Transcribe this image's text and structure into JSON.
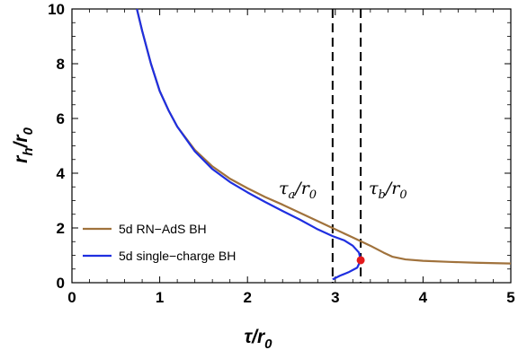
{
  "chart_data": {
    "type": "line",
    "xlabel": "τ/r",
    "xlabel_sub": "0",
    "ylabel": "r",
    "ylabel_sub1": "h",
    "ylabel_mid": "/r",
    "ylabel_sub2": "0",
    "xlim": [
      0,
      5
    ],
    "ylim": [
      0,
      10
    ],
    "xticks": [
      "0",
      "1",
      "2",
      "3",
      "4",
      "5"
    ],
    "yticks": [
      "0",
      "2",
      "4",
      "6",
      "8",
      "10"
    ],
    "grid": false,
    "legend_position": "bottom-left",
    "annotations": [
      {
        "id": "tau-a",
        "main": "τ",
        "sub1": "a",
        "mid": "/",
        "main2": "r",
        "sub2": "0",
        "x": 2.97
      },
      {
        "id": "tau-b",
        "main": "τ",
        "sub1": "b",
        "mid": "/",
        "main2": "r",
        "sub2": "0",
        "x": 3.29
      }
    ],
    "vlines": [
      {
        "x": 2.97,
        "style": "dashed",
        "color": "#000000"
      },
      {
        "x": 3.29,
        "style": "dashed",
        "color": "#000000"
      }
    ],
    "marker": {
      "x": 3.29,
      "y": 0.82,
      "color": "#e41a1c"
    },
    "series": [
      {
        "name": "5d RN−AdS BH",
        "color": "#a0723c",
        "points": [
          [
            0.74,
            10.0
          ],
          [
            0.8,
            9.2
          ],
          [
            0.9,
            8.0
          ],
          [
            1.0,
            7.0
          ],
          [
            1.1,
            6.3
          ],
          [
            1.2,
            5.7
          ],
          [
            1.4,
            4.85
          ],
          [
            1.6,
            4.25
          ],
          [
            1.8,
            3.8
          ],
          [
            2.0,
            3.45
          ],
          [
            2.2,
            3.13
          ],
          [
            2.4,
            2.85
          ],
          [
            2.6,
            2.55
          ],
          [
            2.8,
            2.25
          ],
          [
            3.0,
            1.95
          ],
          [
            3.2,
            1.65
          ],
          [
            3.4,
            1.35
          ],
          [
            3.55,
            1.1
          ],
          [
            3.65,
            0.95
          ],
          [
            3.8,
            0.85
          ],
          [
            4.0,
            0.8
          ],
          [
            4.3,
            0.76
          ],
          [
            4.6,
            0.73
          ],
          [
            5.0,
            0.7
          ]
        ]
      },
      {
        "name": "5d single−charge BH",
        "color": "#1f2fe0",
        "points": [
          [
            0.74,
            10.0
          ],
          [
            0.8,
            9.2
          ],
          [
            0.9,
            8.0
          ],
          [
            1.0,
            7.0
          ],
          [
            1.1,
            6.3
          ],
          [
            1.2,
            5.7
          ],
          [
            1.4,
            4.8
          ],
          [
            1.6,
            4.15
          ],
          [
            1.8,
            3.68
          ],
          [
            2.0,
            3.3
          ],
          [
            2.2,
            2.95
          ],
          [
            2.4,
            2.62
          ],
          [
            2.6,
            2.3
          ],
          [
            2.8,
            1.95
          ],
          [
            2.97,
            1.7
          ],
          [
            3.1,
            1.55
          ],
          [
            3.2,
            1.35
          ],
          [
            3.27,
            1.1
          ],
          [
            3.29,
            0.82
          ],
          [
            3.25,
            0.55
          ],
          [
            3.15,
            0.38
          ],
          [
            3.05,
            0.25
          ],
          [
            2.97,
            0.12
          ]
        ]
      }
    ]
  }
}
